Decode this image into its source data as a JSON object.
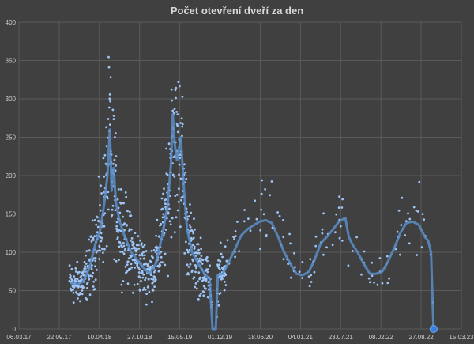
{
  "chart_data": {
    "type": "scatter",
    "title": "Počet otevření dveří za den",
    "xlabel": "",
    "ylabel": "",
    "x_range": [
      "2017-03-06",
      "2023-03-15"
    ],
    "ylim": [
      0,
      400
    ],
    "y_ticks": [
      0,
      50,
      100,
      150,
      200,
      250,
      300,
      350,
      400
    ],
    "x_ticks": [
      "06.03.17",
      "22.09.17",
      "10.04.18",
      "27.10.18",
      "15.05.19",
      "01.12.19",
      "18.06.20",
      "04.01.21",
      "23.07.21",
      "08.02.22",
      "27.08.22",
      "15.03.23"
    ],
    "grid": true,
    "legend": "none",
    "colors": {
      "background": "#404040",
      "grid": "#5a5a5a",
      "points": "#9fc5f8",
      "trend": "#5b8ec9",
      "last_point": "#3a7fe0"
    },
    "trend": {
      "name": "",
      "points": [
        [
          "2017-11-15",
          60
        ],
        [
          "2017-12-20",
          58
        ],
        [
          "2018-01-20",
          62
        ],
        [
          "2018-02-20",
          80
        ],
        [
          "2018-03-20",
          110
        ],
        [
          "2018-04-15",
          130
        ],
        [
          "2018-05-05",
          165
        ],
        [
          "2018-05-20",
          200
        ],
        [
          "2018-06-01",
          260
        ],
        [
          "2018-06-10",
          180
        ],
        [
          "2018-06-20",
          210
        ],
        [
          "2018-07-01",
          165
        ],
        [
          "2018-07-20",
          140
        ],
        [
          "2018-08-15",
          120
        ],
        [
          "2018-09-15",
          100
        ],
        [
          "2018-10-15",
          90
        ],
        [
          "2018-11-15",
          80
        ],
        [
          "2018-12-15",
          72
        ],
        [
          "2019-01-15",
          85
        ],
        [
          "2019-02-15",
          120
        ],
        [
          "2019-03-15",
          160
        ],
        [
          "2019-04-01",
          215
        ],
        [
          "2019-04-10",
          280
        ],
        [
          "2019-04-20",
          240
        ],
        [
          "2019-05-01",
          220
        ],
        [
          "2019-05-20",
          250
        ],
        [
          "2019-06-05",
          180
        ],
        [
          "2019-06-20",
          130
        ],
        [
          "2019-07-15",
          100
        ],
        [
          "2019-08-15",
          85
        ],
        [
          "2019-09-15",
          72
        ],
        [
          "2019-10-10",
          65
        ],
        [
          "2019-10-25",
          0
        ],
        [
          "2019-11-10",
          0
        ],
        [
          "2019-11-20",
          70
        ],
        [
          "2019-12-15",
          72
        ],
        [
          "2020-01-15",
          88
        ],
        [
          "2020-02-15",
          105
        ],
        [
          "2020-03-15",
          122
        ],
        [
          "2020-04-15",
          130
        ],
        [
          "2020-05-15",
          135
        ],
        [
          "2020-06-15",
          140
        ],
        [
          "2020-07-15",
          142
        ],
        [
          "2020-08-15",
          138
        ],
        [
          "2020-09-15",
          120
        ],
        [
          "2020-10-15",
          100
        ],
        [
          "2020-11-15",
          85
        ],
        [
          "2020-12-15",
          72
        ],
        [
          "2021-01-15",
          70
        ],
        [
          "2021-02-15",
          75
        ],
        [
          "2021-03-15",
          90
        ],
        [
          "2021-04-15",
          112
        ],
        [
          "2021-05-15",
          120
        ],
        [
          "2021-06-15",
          130
        ],
        [
          "2021-07-15",
          140
        ],
        [
          "2021-08-15",
          145
        ],
        [
          "2021-09-01",
          120
        ],
        [
          "2021-09-20",
          110
        ],
        [
          "2021-10-15",
          100
        ],
        [
          "2021-11-15",
          85
        ],
        [
          "2021-12-15",
          72
        ],
        [
          "2022-01-15",
          72
        ],
        [
          "2022-02-15",
          75
        ],
        [
          "2022-03-15",
          88
        ],
        [
          "2022-04-15",
          105
        ],
        [
          "2022-05-15",
          125
        ],
        [
          "2022-06-15",
          138
        ],
        [
          "2022-07-15",
          140
        ],
        [
          "2022-08-15",
          136
        ],
        [
          "2022-09-15",
          120
        ],
        [
          "2022-10-01",
          115
        ],
        [
          "2022-10-15",
          100
        ],
        [
          "2022-10-25",
          20
        ],
        [
          "2022-10-28",
          0
        ]
      ]
    },
    "last_point": [
      "2022-10-28",
      0
    ]
  }
}
